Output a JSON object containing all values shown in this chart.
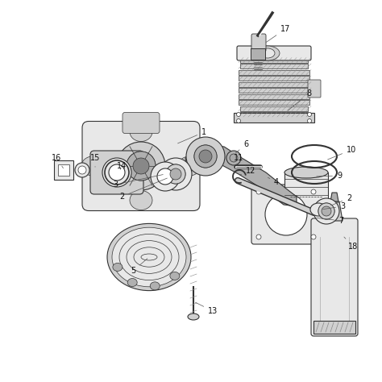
{
  "bg_color": "#ffffff",
  "line_color": "#333333",
  "fill_light": "#e8e8e8",
  "fill_med": "#d0d0d0",
  "fill_dark": "#b0b0b0",
  "lw_main": 0.8,
  "lw_thin": 0.5,
  "label_fs": 7
}
